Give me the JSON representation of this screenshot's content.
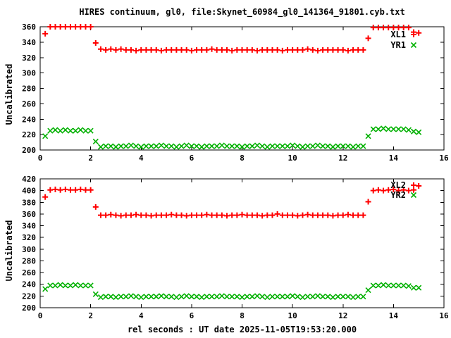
{
  "title": "HIRES continuum, gl0, file:Skynet_60984_gl0_141364_91801.cyb.txt",
  "xlabel": "rel seconds : UT date 2025-11-05T19:53:20.000",
  "colors": {
    "red": "#ff0000",
    "green": "#00b000",
    "axis": "#000000",
    "background": "#ffffff"
  },
  "chart_data": [
    {
      "type": "scatter",
      "panel": "top",
      "ylabel": "Uncalibrated",
      "xlim": [
        0,
        16
      ],
      "ylim": [
        200,
        360
      ],
      "xticks": [
        0,
        2,
        4,
        6,
        8,
        10,
        12,
        14,
        16
      ],
      "yticks": [
        200,
        220,
        240,
        260,
        280,
        300,
        320,
        340,
        360
      ],
      "legend_position": "top-right",
      "grid": false,
      "x": [
        0.2,
        0.4,
        0.6,
        0.8,
        1,
        1.2,
        1.4,
        1.6,
        1.8,
        2,
        2.2,
        2.4,
        2.6,
        2.8,
        3,
        3.2,
        3.4,
        3.6,
        3.8,
        4,
        4.2,
        4.4,
        4.6,
        4.8,
        5,
        5.2,
        5.4,
        5.6,
        5.8,
        6,
        6.2,
        6.4,
        6.6,
        6.8,
        7,
        7.2,
        7.4,
        7.6,
        7.8,
        8,
        8.2,
        8.4,
        8.6,
        8.8,
        9,
        9.2,
        9.4,
        9.6,
        9.8,
        10,
        10.2,
        10.4,
        10.6,
        10.8,
        11,
        11.2,
        11.4,
        11.6,
        11.8,
        12,
        12.2,
        12.4,
        12.6,
        12.8,
        13,
        13.2,
        13.4,
        13.6,
        13.8,
        14,
        14.2,
        14.4,
        14.6,
        14.8,
        15
      ],
      "series": [
        {
          "name": "XL1",
          "marker": "plus",
          "color": "#ff0000",
          "values": [
            351,
            360,
            360,
            360,
            360,
            360,
            360,
            360,
            360,
            360,
            339,
            331,
            330,
            331,
            330,
            331,
            330,
            330,
            329,
            330,
            330,
            330,
            330,
            329,
            330,
            330,
            330,
            330,
            330,
            329,
            330,
            330,
            330,
            331,
            330,
            330,
            330,
            329,
            330,
            330,
            330,
            330,
            329,
            330,
            330,
            330,
            330,
            329,
            330,
            330,
            330,
            330,
            331,
            330,
            329,
            330,
            330,
            330,
            330,
            330,
            329,
            330,
            330,
            330,
            345,
            359,
            359,
            359,
            359,
            359,
            359,
            359,
            359,
            353,
            352
          ]
        },
        {
          "name": "YR1",
          "marker": "cross",
          "color": "#00b000",
          "values": [
            218,
            225,
            226,
            225,
            226,
            225,
            225,
            226,
            225,
            225,
            211,
            204,
            205,
            205,
            204,
            205,
            205,
            206,
            205,
            204,
            205,
            205,
            205,
            206,
            205,
            205,
            204,
            205,
            206,
            205,
            205,
            204,
            205,
            205,
            205,
            206,
            205,
            205,
            205,
            204,
            205,
            205,
            206,
            205,
            204,
            205,
            205,
            205,
            205,
            206,
            205,
            204,
            205,
            205,
            206,
            205,
            205,
            204,
            205,
            205,
            205,
            204,
            205,
            205,
            218,
            227,
            227,
            228,
            227,
            227,
            227,
            227,
            226,
            224,
            223
          ]
        }
      ]
    },
    {
      "type": "scatter",
      "panel": "bottom",
      "ylabel": "Uncalibrated",
      "xlim": [
        0,
        16
      ],
      "ylim": [
        200,
        420
      ],
      "xticks": [
        0,
        2,
        4,
        6,
        8,
        10,
        12,
        14,
        16
      ],
      "yticks": [
        200,
        220,
        240,
        260,
        280,
        300,
        320,
        340,
        360,
        380,
        400,
        420
      ],
      "legend_position": "top-right",
      "grid": false,
      "x": [
        0.2,
        0.4,
        0.6,
        0.8,
        1,
        1.2,
        1.4,
        1.6,
        1.8,
        2,
        2.2,
        2.4,
        2.6,
        2.8,
        3,
        3.2,
        3.4,
        3.6,
        3.8,
        4,
        4.2,
        4.4,
        4.6,
        4.8,
        5,
        5.2,
        5.4,
        5.6,
        5.8,
        6,
        6.2,
        6.4,
        6.6,
        6.8,
        7,
        7.2,
        7.4,
        7.6,
        7.8,
        8,
        8.2,
        8.4,
        8.6,
        8.8,
        9,
        9.2,
        9.4,
        9.6,
        9.8,
        10,
        10.2,
        10.4,
        10.6,
        10.8,
        11,
        11.2,
        11.4,
        11.6,
        11.8,
        12,
        12.2,
        12.4,
        12.6,
        12.8,
        13,
        13.2,
        13.4,
        13.6,
        13.8,
        14,
        14.2,
        14.4,
        14.6,
        14.8,
        15
      ],
      "series": [
        {
          "name": "XL2",
          "marker": "plus",
          "color": "#ff0000",
          "values": [
            389,
            401,
            402,
            401,
            402,
            401,
            401,
            402,
            401,
            401,
            372,
            358,
            358,
            359,
            358,
            357,
            358,
            358,
            359,
            358,
            358,
            357,
            358,
            358,
            358,
            359,
            358,
            358,
            357,
            358,
            358,
            358,
            359,
            358,
            358,
            358,
            357,
            358,
            358,
            359,
            358,
            358,
            358,
            357,
            358,
            358,
            360,
            358,
            358,
            358,
            357,
            358,
            359,
            358,
            358,
            358,
            358,
            357,
            358,
            358,
            359,
            358,
            358,
            358,
            381,
            400,
            401,
            400,
            401,
            402,
            400,
            401,
            400,
            401,
            408
          ]
        },
        {
          "name": "YR2",
          "marker": "cross",
          "color": "#00b000",
          "values": [
            232,
            238,
            238,
            239,
            238,
            238,
            239,
            238,
            238,
            238,
            223,
            218,
            219,
            219,
            218,
            219,
            219,
            220,
            219,
            218,
            219,
            219,
            219,
            220,
            219,
            219,
            218,
            219,
            220,
            219,
            219,
            218,
            219,
            219,
            219,
            220,
            219,
            219,
            219,
            218,
            219,
            219,
            220,
            219,
            218,
            219,
            219,
            219,
            219,
            220,
            219,
            218,
            219,
            219,
            220,
            219,
            219,
            218,
            219,
            219,
            219,
            218,
            219,
            219,
            230,
            238,
            238,
            239,
            238,
            238,
            238,
            238,
            237,
            234,
            234
          ]
        }
      ]
    }
  ]
}
